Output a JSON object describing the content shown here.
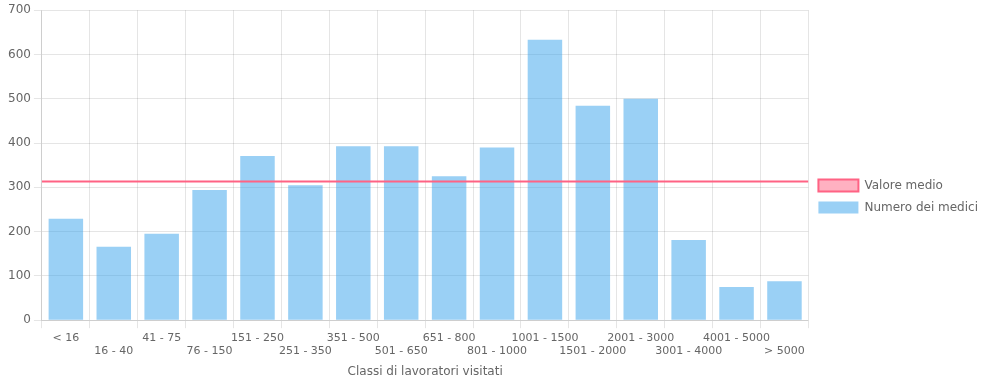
{
  "chart_data": {
    "type": "bar",
    "xlabel": "Classi di lavoratori visitati",
    "categories": [
      "< 16",
      "16 - 40",
      "41 - 75",
      "76 - 150",
      "151 - 250",
      "251 - 350",
      "351 - 500",
      "501 - 650",
      "651 - 800",
      "801 - 1000",
      "1001 - 1500",
      "1501 - 2000",
      "2001 - 3000",
      "3001 - 4000",
      "4001 - 5000",
      "> 5000"
    ],
    "series": [
      {
        "name": "Numero dei medici",
        "values": [
          229,
          166,
          195,
          294,
          371,
          305,
          393,
          393,
          325,
          390,
          633,
          484,
          500,
          181,
          75,
          88
        ]
      }
    ],
    "mean": {
      "name": "Valore medio",
      "value": 313
    },
    "ylim": [
      0,
      700
    ],
    "yticks": [
      0,
      100,
      200,
      300,
      400,
      500,
      600,
      700
    ],
    "grid": true,
    "legend": "right"
  }
}
